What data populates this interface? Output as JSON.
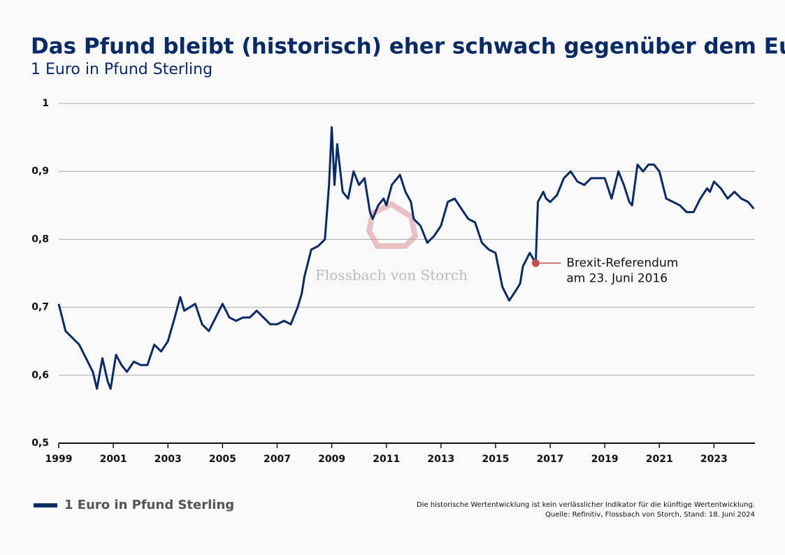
{
  "chart_data": {
    "type": "line",
    "title": "Das Pfund bleibt (historisch) eher schwach gegenüber dem Euro",
    "subtitle": "1 Euro in Pfund Sterling",
    "x": [
      1999.0,
      1999.25,
      1999.5,
      1999.75,
      2000.0,
      2000.25,
      2000.4,
      2000.6,
      2000.8,
      2000.9,
      2001.1,
      2001.3,
      2001.5,
      2001.75,
      2002.0,
      2002.25,
      2002.5,
      2002.75,
      2003.0,
      2003.25,
      2003.45,
      2003.6,
      2003.8,
      2004.0,
      2004.25,
      2004.5,
      2004.75,
      2005.0,
      2005.25,
      2005.5,
      2005.75,
      2006.0,
      2006.25,
      2006.5,
      2006.75,
      2007.0,
      2007.25,
      2007.5,
      2007.75,
      2007.9,
      2008.0,
      2008.25,
      2008.5,
      2008.75,
      2008.9,
      2009.0,
      2009.1,
      2009.2,
      2009.4,
      2009.6,
      2009.8,
      2010.0,
      2010.2,
      2010.4,
      2010.5,
      2010.7,
      2010.9,
      2011.0,
      2011.2,
      2011.5,
      2011.7,
      2011.9,
      2012.0,
      2012.25,
      2012.5,
      2012.75,
      2013.0,
      2013.25,
      2013.5,
      2013.75,
      2014.0,
      2014.25,
      2014.5,
      2014.75,
      2015.0,
      2015.25,
      2015.5,
      2015.75,
      2015.9,
      2016.0,
      2016.25,
      2016.47,
      2016.55,
      2016.75,
      2016.85,
      2017.0,
      2017.25,
      2017.5,
      2017.75,
      2018.0,
      2018.25,
      2018.5,
      2018.75,
      2019.0,
      2019.25,
      2019.5,
      2019.7,
      2019.9,
      2020.0,
      2020.2,
      2020.4,
      2020.6,
      2020.8,
      2021.0,
      2021.25,
      2021.5,
      2021.75,
      2022.0,
      2022.25,
      2022.5,
      2022.75,
      2022.85,
      2023.0,
      2023.25,
      2023.5,
      2023.75,
      2024.0,
      2024.25,
      2024.46
    ],
    "series": [
      {
        "name": "1 Euro in Pfund Sterling",
        "color": "#0a2a66",
        "values": [
          0.705,
          0.665,
          0.655,
          0.645,
          0.625,
          0.605,
          0.58,
          0.625,
          0.59,
          0.58,
          0.63,
          0.615,
          0.605,
          0.62,
          0.615,
          0.615,
          0.645,
          0.635,
          0.65,
          0.685,
          0.715,
          0.695,
          0.7,
          0.705,
          0.675,
          0.665,
          0.685,
          0.705,
          0.685,
          0.68,
          0.685,
          0.685,
          0.695,
          0.685,
          0.675,
          0.675,
          0.68,
          0.675,
          0.7,
          0.72,
          0.745,
          0.785,
          0.79,
          0.8,
          0.88,
          0.965,
          0.88,
          0.94,
          0.87,
          0.86,
          0.9,
          0.88,
          0.89,
          0.84,
          0.83,
          0.85,
          0.86,
          0.85,
          0.88,
          0.895,
          0.87,
          0.855,
          0.83,
          0.82,
          0.795,
          0.805,
          0.82,
          0.855,
          0.86,
          0.845,
          0.83,
          0.825,
          0.795,
          0.785,
          0.78,
          0.73,
          0.71,
          0.725,
          0.735,
          0.76,
          0.78,
          0.765,
          0.855,
          0.87,
          0.86,
          0.855,
          0.865,
          0.89,
          0.9,
          0.885,
          0.88,
          0.89,
          0.89,
          0.89,
          0.86,
          0.9,
          0.88,
          0.855,
          0.85,
          0.91,
          0.9,
          0.91,
          0.91,
          0.9,
          0.86,
          0.855,
          0.85,
          0.84,
          0.84,
          0.86,
          0.875,
          0.87,
          0.885,
          0.875,
          0.86,
          0.87,
          0.86,
          0.855,
          0.845
        ]
      }
    ],
    "xlim": [
      1999,
      2024.5
    ],
    "xticks": [
      1999,
      2001,
      2003,
      2005,
      2007,
      2009,
      2011,
      2013,
      2015,
      2017,
      2019,
      2021,
      2023
    ],
    "ylim": [
      0.5,
      1
    ],
    "yticks": [
      {
        "value": 0.5,
        "label": "0,5"
      },
      {
        "value": 0.6,
        "label": "0,6"
      },
      {
        "value": 0.7,
        "label": "0,7"
      },
      {
        "value": 0.8,
        "label": "0,8"
      },
      {
        "value": 0.9,
        "label": "0,9"
      },
      1
    ],
    "grid": true,
    "annotation": {
      "text": [
        "Brexit-Referendum",
        "am 23. Juni 2016"
      ],
      "x": 2016.47,
      "y": 0.765,
      "color": "#c0504d"
    },
    "watermark": "Flossbach von Storch",
    "note": "Die historische Wertentwicklung ist kein verlässlicher Indikator für die künftige Wertentwicklung.",
    "source": "Quelle: Refinitiv, Flossbach von Storch, Stand: 18. Juni 2024"
  }
}
